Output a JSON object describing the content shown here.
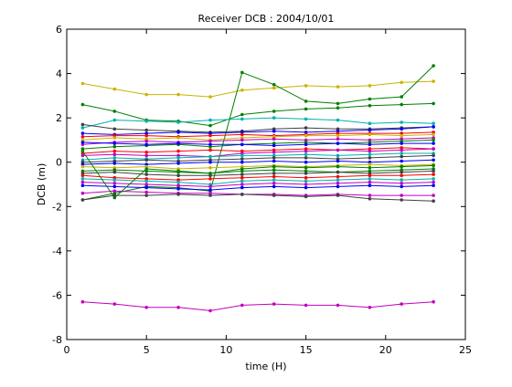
{
  "chart_data": {
    "type": "line",
    "title": "Receiver DCB : 2004/10/01",
    "xlabel": "time (H)",
    "ylabel": "DCB (m)",
    "xlim": [
      0,
      25
    ],
    "ylim": [
      -8,
      6
    ],
    "xticks": [
      0,
      5,
      10,
      15,
      20,
      25
    ],
    "yticks": [
      -8,
      -6,
      -4,
      -2,
      0,
      2,
      4,
      6
    ],
    "grid": false,
    "x": [
      1,
      3,
      5,
      7,
      9,
      11,
      13,
      15,
      17,
      19,
      21,
      23
    ],
    "series": [
      {
        "color": "#c8b400",
        "values": [
          3.55,
          3.3,
          3.05,
          3.05,
          2.95,
          3.25,
          3.35,
          3.45,
          3.4,
          3.45,
          3.6,
          3.65
        ]
      },
      {
        "color": "#008000",
        "values": [
          2.6,
          2.3,
          1.9,
          1.85,
          1.65,
          2.15,
          2.3,
          2.4,
          2.45,
          2.55,
          2.6,
          2.65
        ]
      },
      {
        "color": "#008000",
        "values": [
          -1.7,
          -1.4,
          -1.1,
          -1.15,
          -1.3,
          4.05,
          3.5,
          2.75,
          2.65,
          2.85,
          2.95,
          4.35
        ]
      },
      {
        "color": "#00b0b0",
        "values": [
          1.55,
          1.9,
          1.85,
          1.8,
          1.9,
          1.95,
          2.0,
          1.95,
          1.9,
          1.75,
          1.8,
          1.75
        ]
      },
      {
        "color": "#404040",
        "values": [
          1.7,
          1.5,
          1.45,
          1.4,
          1.35,
          1.4,
          1.5,
          1.55,
          1.5,
          1.5,
          1.55,
          1.6
        ]
      },
      {
        "color": "#0000ff",
        "values": [
          1.3,
          1.25,
          1.3,
          1.35,
          1.3,
          1.35,
          1.4,
          1.35,
          1.4,
          1.45,
          1.5,
          1.6
        ]
      },
      {
        "color": "#ff0000",
        "values": [
          1.15,
          1.2,
          1.2,
          1.15,
          1.2,
          1.25,
          1.2,
          1.25,
          1.3,
          1.3,
          1.3,
          1.35
        ]
      },
      {
        "color": "#c8b400",
        "values": [
          1.0,
          1.1,
          1.05,
          1.1,
          1.0,
          1.1,
          1.15,
          1.2,
          1.2,
          1.25,
          1.2,
          1.25
        ]
      },
      {
        "color": "#c000c0",
        "values": [
          0.8,
          0.9,
          0.95,
          0.9,
          0.95,
          1.0,
          1.05,
          1.0,
          1.05,
          1.0,
          1.05,
          1.1
        ]
      },
      {
        "color": "#008000",
        "values": [
          0.6,
          0.7,
          0.75,
          0.8,
          0.7,
          0.8,
          0.85,
          0.9,
          0.85,
          0.9,
          0.95,
          1.0
        ]
      },
      {
        "color": "#0000ff",
        "values": [
          0.9,
          0.85,
          0.8,
          0.85,
          0.8,
          0.8,
          0.75,
          0.8,
          0.85,
          0.8,
          0.85,
          0.85
        ]
      },
      {
        "color": "#ff0000",
        "values": [
          0.4,
          0.5,
          0.45,
          0.5,
          0.55,
          0.5,
          0.55,
          0.6,
          0.55,
          0.6,
          0.65,
          0.6
        ]
      },
      {
        "color": "#c000c0",
        "values": [
          0.3,
          0.35,
          0.3,
          0.3,
          0.25,
          0.4,
          0.45,
          0.5,
          0.55,
          0.5,
          0.55,
          0.6
        ]
      },
      {
        "color": "#00b0b0",
        "values": [
          0.1,
          0.2,
          0.15,
          0.2,
          0.25,
          0.3,
          0.3,
          0.35,
          0.3,
          0.35,
          0.4,
          0.4
        ]
      },
      {
        "color": "#404040",
        "values": [
          0.0,
          0.05,
          0.1,
          0.05,
          0.1,
          0.15,
          0.2,
          0.2,
          0.15,
          0.2,
          0.25,
          0.3
        ]
      },
      {
        "color": "#0000ff",
        "values": [
          -0.1,
          -0.05,
          -0.1,
          -0.05,
          0.0,
          0.0,
          0.05,
          0.0,
          0.05,
          0.0,
          0.05,
          0.1
        ]
      },
      {
        "color": "#c8b400",
        "values": [
          -0.2,
          -0.25,
          -0.2,
          -0.3,
          -0.25,
          -0.2,
          -0.15,
          -0.2,
          -0.15,
          -0.1,
          -0.15,
          -0.1
        ]
      },
      {
        "color": "#008000",
        "values": [
          -0.4,
          -0.35,
          -0.4,
          -0.45,
          -0.5,
          -0.4,
          -0.35,
          -0.4,
          -0.45,
          -0.4,
          -0.35,
          -0.3
        ]
      },
      {
        "color": "#404040",
        "values": [
          -0.5,
          -0.45,
          -0.55,
          -0.6,
          -0.6,
          -0.55,
          -0.5,
          -0.5,
          -0.45,
          -0.5,
          -0.45,
          -0.4
        ]
      },
      {
        "color": "#ff0000",
        "values": [
          -0.6,
          -0.7,
          -0.75,
          -0.8,
          -0.75,
          -0.7,
          -0.65,
          -0.7,
          -0.65,
          -0.6,
          -0.6,
          -0.55
        ]
      },
      {
        "color": "#00b0b0",
        "values": [
          -0.75,
          -0.8,
          -0.85,
          -0.9,
          -1.0,
          -0.85,
          -0.8,
          -0.85,
          -0.8,
          -0.75,
          -0.8,
          -0.75
        ]
      },
      {
        "color": "#c000c0",
        "values": [
          -0.9,
          -0.95,
          -1.0,
          -1.05,
          -1.1,
          -1.0,
          -0.95,
          -1.0,
          -0.95,
          -0.9,
          -0.95,
          -0.9
        ]
      },
      {
        "color": "#0000ff",
        "values": [
          -1.05,
          -1.1,
          -1.15,
          -1.2,
          -1.25,
          -1.15,
          -1.1,
          -1.15,
          -1.1,
          -1.05,
          -1.1,
          -1.05
        ]
      },
      {
        "color": "#c000c0",
        "values": [
          -1.4,
          -1.3,
          -1.35,
          -1.4,
          -1.4,
          -1.45,
          -1.45,
          -1.5,
          -1.45,
          -1.5,
          -1.5,
          -1.5
        ]
      },
      {
        "color": "#008000",
        "values": [
          0.5,
          -1.6,
          -0.3,
          -0.4,
          -0.5,
          -0.3,
          -0.2,
          -0.25,
          -0.2,
          -0.25,
          -0.2,
          -0.15
        ]
      },
      {
        "color": "#404040",
        "values": [
          -1.7,
          -1.5,
          -1.5,
          -1.45,
          -1.5,
          -1.45,
          -1.5,
          -1.55,
          -1.5,
          -1.65,
          -1.7,
          -1.75
        ]
      },
      {
        "color": "#c000c0",
        "values": [
          -6.3,
          -6.4,
          -6.55,
          -6.55,
          -6.7,
          -6.45,
          -6.4,
          -6.45,
          -6.45,
          -6.55,
          -6.4,
          -6.3
        ]
      }
    ]
  }
}
